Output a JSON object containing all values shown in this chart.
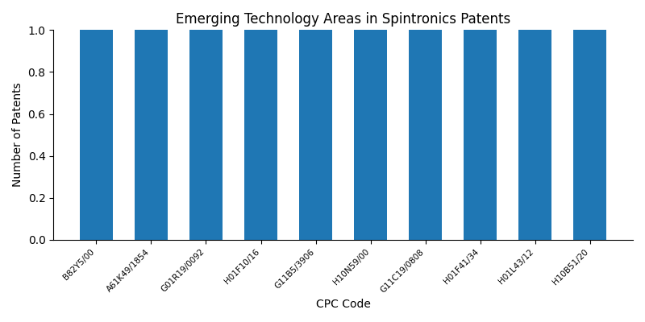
{
  "title": "Emerging Technology Areas in Spintronics Patents",
  "xlabel": "CPC Code",
  "ylabel": "Number of Patents",
  "categories": [
    "B82Y5/00",
    "A61K49/1854",
    "G01R19/0092",
    "H01F10/16",
    "G11B5/3906",
    "H10N59/00",
    "G11C19/0808",
    "H01F41/34",
    "H01L43/12",
    "H10B51/20"
  ],
  "values": [
    1,
    1,
    1,
    1,
    1,
    1,
    1,
    1,
    1,
    1
  ],
  "bar_color": "#1f77b4",
  "bar_width": 0.6,
  "ylim": [
    0,
    1.0
  ],
  "yticks": [
    0.0,
    0.2,
    0.4,
    0.6,
    0.8,
    1.0
  ],
  "title_fontsize": 12,
  "label_fontsize": 10,
  "tick_fontsize": 7.5,
  "figsize": [
    8.0,
    4.0
  ],
  "dpi": 100
}
